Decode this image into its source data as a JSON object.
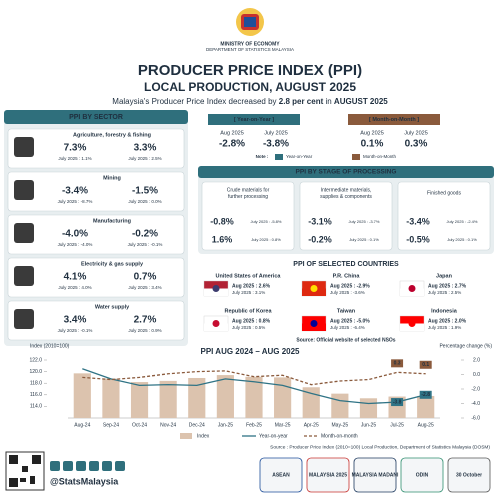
{
  "header": {
    "ministry": "MINISTRY OF ECONOMY",
    "department": "DEPARTMENT OF STATISTICS MALAYSIA",
    "title": "PRODUCER PRICE INDEX (PPI)",
    "subtitle": "LOCAL PRODUCTION, AUGUST 2025",
    "lead": [
      "Malaysia's Producer Price Index decreased by ",
      "2.8 per cent",
      " in ",
      "AUGUST 2025"
    ]
  },
  "overall": {
    "yoy": {
      "heading": "[ Year-on-Year ]",
      "current_label": "Aug 2025",
      "current": "-2.8%",
      "previous_label": "July 2025",
      "previous": "-3.8%"
    },
    "mom": {
      "heading": "[ Month-on-Month ]",
      "current_label": "Aug 2025",
      "current": "0.1%",
      "previous_label": "July 2025",
      "previous": "0.3%"
    },
    "note": "Note :",
    "note_yoy": "Year-on-Year",
    "note_mom": "Month-on-Month"
  },
  "sectors": {
    "title": "PPI BY SECTOR",
    "items": [
      {
        "name": "Agriculture, forestry & fishing",
        "yoy": "7.3%",
        "yoy_prev": "July 2025 : 1.1%",
        "mom": "3.3%",
        "mom_prev": "July 2025 : 2.5%"
      },
      {
        "name": "Mining",
        "yoy": "-3.4%",
        "yoy_prev": "July 2025 : -8.7%",
        "mom": "-1.5%",
        "mom_prev": "July 2025 : 0.0%"
      },
      {
        "name": "Manufacturing",
        "yoy": "-4.0%",
        "yoy_prev": "July 2025 : -4.0%",
        "mom": "-0.2%",
        "mom_prev": "July 2025 : -0.1%"
      },
      {
        "name": "Electricity & gas supply",
        "yoy": "4.1%",
        "yoy_prev": "July 2025 : 4.0%",
        "mom": "0.7%",
        "mom_prev": "July 2025 : 3.4%"
      },
      {
        "name": "Water supply",
        "yoy": "3.4%",
        "yoy_prev": "July 2025 : -0.1%",
        "mom": "2.7%",
        "mom_prev": "July 2025 : 0.9%"
      }
    ]
  },
  "stages": {
    "title": "PPI BY STAGE OF PROCESSING",
    "items": [
      {
        "name": [
          "Crude materials for",
          "further processing"
        ],
        "yoy": "-0.8%",
        "yoy_prev": "July 2025 : -5.8%",
        "mom": "1.6%",
        "mom_prev": "July 2025 : 0.8%"
      },
      {
        "name": [
          "Intermediate materials,",
          "supplies & components"
        ],
        "yoy": "-3.1%",
        "yoy_prev": "July 2025 : -3.7%",
        "mom": "-0.2%",
        "mom_prev": "July 2025 : 0.1%"
      },
      {
        "name": [
          "Finished goods"
        ],
        "yoy": "-3.4%",
        "yoy_prev": "July 2025 : -2.4%",
        "mom": "-0.5%",
        "mom_prev": "July 2025 : 0.1%"
      }
    ]
  },
  "countries": {
    "title": "PPI OF SELECTED COUNTRIES",
    "items": [
      {
        "name": "United States of America",
        "current": "Aug 2025 : 2.6%",
        "previous": "July 2025 : 3.1%"
      },
      {
        "name": "P.R. China",
        "current": "Aug 2025 : -2.9%",
        "previous": "July 2025 : -3.6%"
      },
      {
        "name": "Japan",
        "current": "Aug 2025 : 2.7%",
        "previous": "July 2025 : 2.5%"
      },
      {
        "name": "Republic of Korea",
        "current": "Aug 2025 : 0.8%",
        "previous": "July 2025 : 0.5%"
      },
      {
        "name": "Taiwan",
        "current": "Aug 2025 : -5.0%",
        "previous": "July 2025 : -6.4%"
      },
      {
        "name": "Indonesia",
        "current": "Aug 2025 : 2.0%",
        "previous": "July 2025 : 1.9%"
      }
    ],
    "source": "Source: Official website of selected NSOs"
  },
  "chart_data": {
    "type": "bar",
    "title": "PPI AUG 2024 – AUG 2025",
    "ylabel": "Index (2010=100)",
    "y2label": "Percentage change (%)",
    "categories": [
      "Aug-24",
      "Sep-24",
      "Oct-24",
      "Nov-24",
      "Dec-24",
      "Jan-25",
      "Feb-25",
      "Mar-25",
      "Apr-25",
      "May-25",
      "Jun-25",
      "Jul-25",
      "Aug-25"
    ],
    "series": [
      {
        "name": "Index",
        "color": "#dcc3ae",
        "values": [
          119.7,
          118.8,
          118.2,
          118.4,
          118.9,
          119.4,
          119.1,
          119.0,
          117.3,
          116.2,
          115.4,
          115.7,
          115.8
        ]
      },
      {
        "name": "Year-on-year",
        "type": "line",
        "axis": "y2",
        "color": "#2f7385",
        "values": [
          0.8,
          -0.6,
          -1.5,
          -1.4,
          -1.5,
          -0.6,
          -1.0,
          -1.5,
          -2.6,
          -3.6,
          -4.0,
          -3.8,
          -2.8
        ],
        "value_labels": [
          null,
          null,
          null,
          null,
          null,
          null,
          null,
          null,
          null,
          null,
          null,
          "-3.8",
          "-2.8"
        ]
      },
      {
        "name": "Month-on-month",
        "type": "line",
        "axis": "y2",
        "dash": true,
        "color": "#8a5a3c",
        "values": [
          -0.4,
          -0.7,
          -0.4,
          0.1,
          0.4,
          0.5,
          -0.3,
          -0.1,
          -1.4,
          -0.9,
          -0.7,
          0.3,
          0.1
        ],
        "value_labels": [
          null,
          null,
          null,
          null,
          null,
          null,
          null,
          null,
          null,
          null,
          null,
          "0.3",
          "0.1"
        ]
      }
    ],
    "ylim": [
      112,
      122
    ],
    "yticks": [
      {
        "value": 122,
        "label": "122.0"
      },
      {
        "value": 120,
        "label": "120.0"
      },
      {
        "value": 118,
        "label": "118.0"
      },
      {
        "value": 116,
        "label": "116.0"
      },
      {
        "value": 114,
        "label": "114.0"
      }
    ],
    "y2lim": [
      -6,
      2
    ],
    "y2ticks": [
      {
        "value": 2,
        "label": "2.0"
      },
      {
        "value": 0,
        "label": "0.0"
      },
      {
        "value": -2,
        "label": "-2.0"
      },
      {
        "value": -4,
        "label": "-4.0"
      },
      {
        "value": -6,
        "label": "-6.0"
      }
    ],
    "source": "Source : Producer Price Index (2010=100) Local Production, Department of Statistics Malaysia (DOSM)"
  },
  "footer": {
    "handle": "@StatsMalaysia",
    "logos": [
      "ASEAN",
      "MALAYSIA 2025",
      "MALAYSIA MADANI",
      "ODIN",
      "30 October"
    ]
  }
}
